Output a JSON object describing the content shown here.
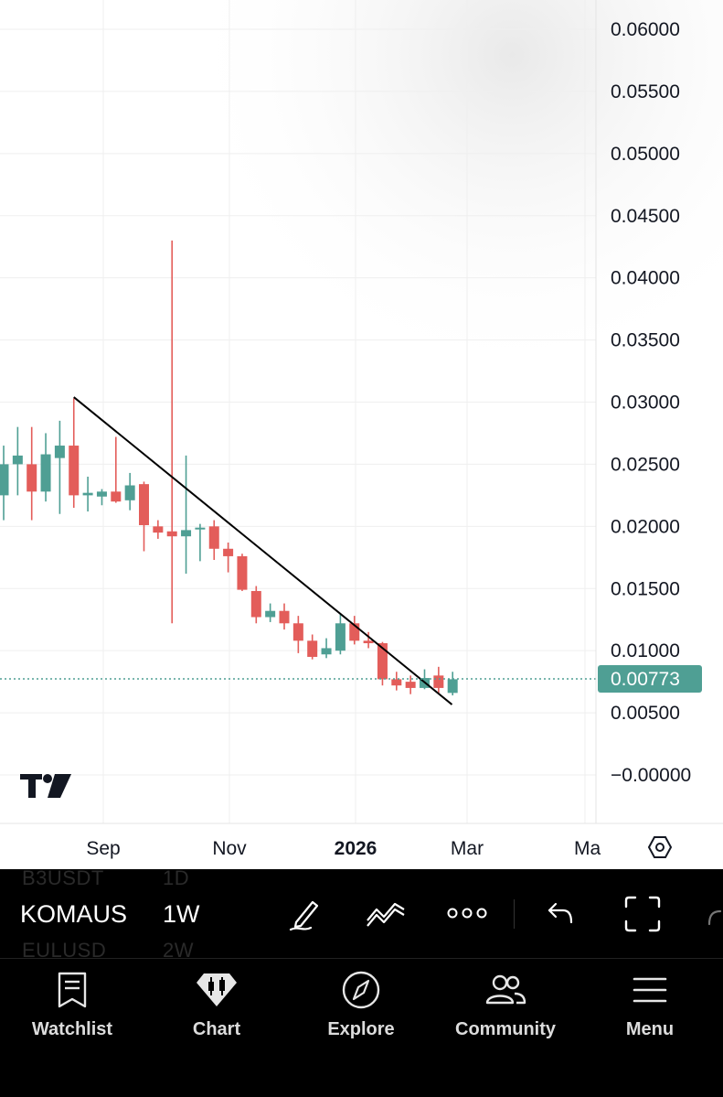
{
  "chart": {
    "price_axis": {
      "labels": [
        "0.06000",
        "0.05500",
        "0.05000",
        "0.04500",
        "0.04000",
        "0.03500",
        "0.03000",
        "0.02500",
        "0.02000",
        "0.01500",
        "0.01000",
        "0.00500",
        "−0.00000"
      ],
      "values": [
        0.06,
        0.055,
        0.05,
        0.045,
        0.04,
        0.035,
        0.03,
        0.025,
        0.02,
        0.015,
        0.01,
        0.005,
        0.0
      ]
    },
    "time_axis": {
      "labels": [
        "Sep",
        "Nov",
        "2026",
        "Mar",
        "Ma"
      ],
      "bold": [
        false,
        false,
        true,
        false,
        false
      ]
    },
    "current_price": "0.00773",
    "current_price_value": 0.00773,
    "colors": {
      "up": "#4f9f94",
      "down": "#e35d5a",
      "price_badge": "#4f9f94",
      "trendline": "#000000",
      "grid": "#efefef"
    },
    "settings_icon": "hexagon-settings-icon",
    "logo": "tradingview-logo",
    "trendline": {
      "start": {
        "candle": 5,
        "price": 0.0304
      },
      "end": {
        "candle": 30,
        "price": 0.0064
      }
    },
    "candles": [
      {
        "o": 0.0225,
        "h": 0.0265,
        "l": 0.0205,
        "c": 0.025
      },
      {
        "o": 0.025,
        "h": 0.028,
        "l": 0.0225,
        "c": 0.0257
      },
      {
        "o": 0.025,
        "h": 0.028,
        "l": 0.0205,
        "c": 0.0228
      },
      {
        "o": 0.0228,
        "h": 0.0275,
        "l": 0.022,
        "c": 0.0258
      },
      {
        "o": 0.0255,
        "h": 0.0285,
        "l": 0.021,
        "c": 0.0265
      },
      {
        "o": 0.0265,
        "h": 0.0303,
        "l": 0.0215,
        "c": 0.0225
      },
      {
        "o": 0.0225,
        "h": 0.024,
        "l": 0.0212,
        "c": 0.0227
      },
      {
        "o": 0.0224,
        "h": 0.023,
        "l": 0.0217,
        "c": 0.0228
      },
      {
        "o": 0.0228,
        "h": 0.0272,
        "l": 0.0219,
        "c": 0.022
      },
      {
        "o": 0.0221,
        "h": 0.0243,
        "l": 0.0213,
        "c": 0.0233
      },
      {
        "o": 0.0234,
        "h": 0.0236,
        "l": 0.018,
        "c": 0.0201
      },
      {
        "o": 0.02,
        "h": 0.0205,
        "l": 0.019,
        "c": 0.0195
      },
      {
        "o": 0.0196,
        "h": 0.043,
        "l": 0.0122,
        "c": 0.0192
      },
      {
        "o": 0.0192,
        "h": 0.0257,
        "l": 0.0162,
        "c": 0.0197
      },
      {
        "o": 0.0198,
        "h": 0.0202,
        "l": 0.0172,
        "c": 0.0199
      },
      {
        "o": 0.02,
        "h": 0.0205,
        "l": 0.0173,
        "c": 0.0182
      },
      {
        "o": 0.0182,
        "h": 0.0187,
        "l": 0.0163,
        "c": 0.0176
      },
      {
        "o": 0.0176,
        "h": 0.0178,
        "l": 0.0148,
        "c": 0.0149
      },
      {
        "o": 0.0148,
        "h": 0.0152,
        "l": 0.0122,
        "c": 0.0127
      },
      {
        "o": 0.0127,
        "h": 0.0138,
        "l": 0.0123,
        "c": 0.0132
      },
      {
        "o": 0.0132,
        "h": 0.0138,
        "l": 0.0117,
        "c": 0.0122
      },
      {
        "o": 0.0122,
        "h": 0.0128,
        "l": 0.0098,
        "c": 0.0108
      },
      {
        "o": 0.0108,
        "h": 0.0113,
        "l": 0.0093,
        "c": 0.0095
      },
      {
        "o": 0.0097,
        "h": 0.011,
        "l": 0.0094,
        "c": 0.0102
      },
      {
        "o": 0.01,
        "h": 0.013,
        "l": 0.0097,
        "c": 0.0122
      },
      {
        "o": 0.0122,
        "h": 0.0128,
        "l": 0.0105,
        "c": 0.0108
      },
      {
        "o": 0.0108,
        "h": 0.0115,
        "l": 0.0102,
        "c": 0.0106
      },
      {
        "o": 0.0106,
        "h": 0.0107,
        "l": 0.0072,
        "c": 0.0077
      },
      {
        "o": 0.0077,
        "h": 0.0083,
        "l": 0.0068,
        "c": 0.0072
      },
      {
        "o": 0.0075,
        "h": 0.008,
        "l": 0.0065,
        "c": 0.007
      },
      {
        "o": 0.007,
        "h": 0.0085,
        "l": 0.0069,
        "c": 0.0078
      },
      {
        "o": 0.008,
        "h": 0.0087,
        "l": 0.0066,
        "c": 0.007
      },
      {
        "o": 0.0066,
        "h": 0.0083,
        "l": 0.0064,
        "c": 0.0077
      }
    ]
  },
  "toolbar": {
    "symbol_above": "B3USDT",
    "interval_above": "1D",
    "symbol": "KOMAUS",
    "interval": "1W",
    "symbol_below": "EULUSD",
    "interval_below": "2W",
    "icons": [
      "pen-draw-icon",
      "indicators-wave-icon",
      "more-icon",
      "undo-icon",
      "fullscreen-icon"
    ]
  },
  "nav": {
    "items": [
      {
        "label": "Watchlist",
        "icon": "watchlist-icon"
      },
      {
        "label": "Chart",
        "icon": "chart-icon"
      },
      {
        "label": "Explore",
        "icon": "compass-icon"
      },
      {
        "label": "Community",
        "icon": "community-icon"
      },
      {
        "label": "Menu",
        "icon": "menu-icon"
      }
    ]
  }
}
